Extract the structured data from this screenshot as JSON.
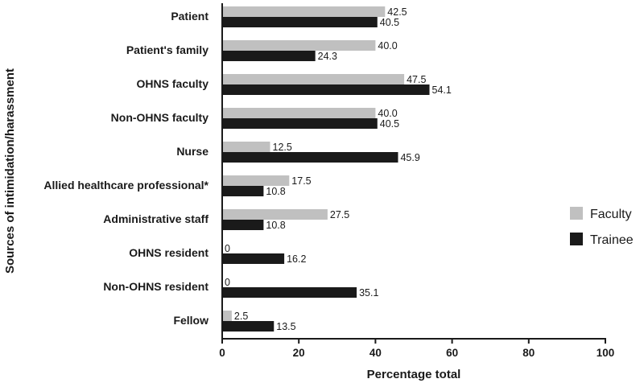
{
  "chart_data": {
    "type": "bar",
    "orientation": "horizontal",
    "categories": [
      "Patient",
      "Patient's family",
      "OHNS faculty",
      "Non-OHNS faculty",
      "Nurse",
      "Allied healthcare professional*",
      "Administrative staff",
      "OHNS resident",
      "Non-OHNS resident",
      "Fellow"
    ],
    "series": [
      {
        "name": "Faculty",
        "color": "#c0c0c0",
        "values": [
          42.5,
          40.0,
          47.5,
          40.0,
          12.5,
          17.5,
          27.5,
          0,
          0,
          2.5
        ],
        "labels": [
          "42.5",
          "40.0",
          "47.5",
          "40.0",
          "12.5",
          "17.5",
          "27.5",
          "0",
          "0",
          "2.5"
        ]
      },
      {
        "name": "Trainee",
        "color": "#1a1a1a",
        "values": [
          40.5,
          24.3,
          54.1,
          40.5,
          45.9,
          10.8,
          10.8,
          16.2,
          35.1,
          13.5
        ],
        "labels": [
          "40.5",
          "24.3",
          "54.1",
          "40.5",
          "45.9",
          "10.8",
          "10.8",
          "16.2",
          "35.1",
          "13.5"
        ]
      }
    ],
    "xlabel": "Percentage total",
    "ylabel": "Sources of intimidation/harassment",
    "xlim": [
      0,
      100
    ],
    "xticks": [
      0,
      20,
      40,
      60,
      80,
      100
    ],
    "grid": false,
    "legend_position": "right"
  }
}
